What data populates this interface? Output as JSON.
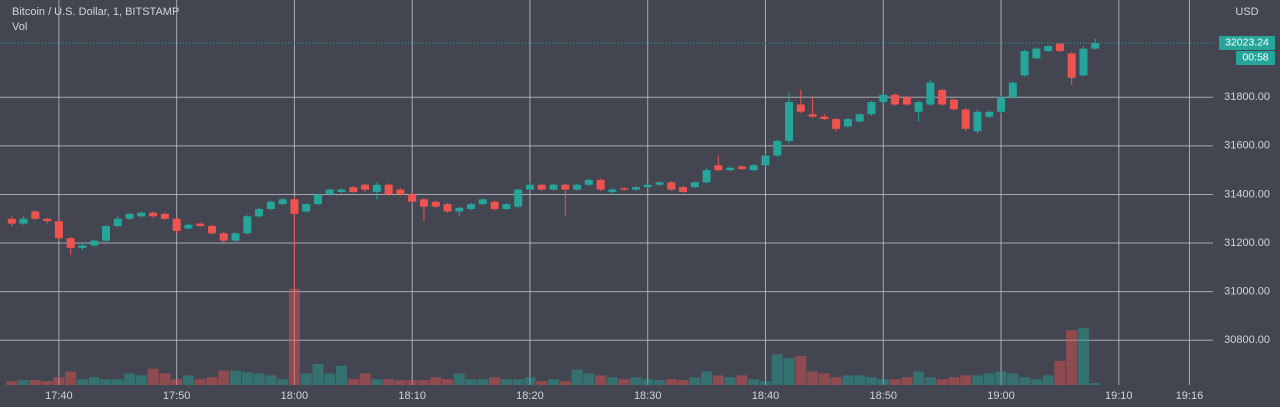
{
  "chart_data": {
    "type": "candlestick",
    "title": "Bitcoin / U.S. Dollar, 1, BITSTAMP",
    "currency": "USD",
    "countdown": "00:58",
    "up_color": "#26a69a",
    "down_color": "#ef5350",
    "x": [
      "17:36",
      "17:37",
      "17:38",
      "17:39",
      "17:40",
      "17:41",
      "17:42",
      "17:43",
      "17:44",
      "17:45",
      "17:46",
      "17:47",
      "17:48",
      "17:49",
      "17:50",
      "17:51",
      "17:52",
      "17:53",
      "17:54",
      "17:55",
      "17:56",
      "17:57",
      "17:58",
      "17:59",
      "18:00",
      "18:01",
      "18:02",
      "18:03",
      "18:04",
      "18:05",
      "18:06",
      "18:07",
      "18:08",
      "18:09",
      "18:10",
      "18:11",
      "18:12",
      "18:13",
      "18:14",
      "18:15",
      "18:16",
      "18:17",
      "18:18",
      "18:19",
      "18:20",
      "18:21",
      "18:22",
      "18:23",
      "18:24",
      "18:25",
      "18:26",
      "18:27",
      "18:28",
      "18:29",
      "18:30",
      "18:31",
      "18:32",
      "18:33",
      "18:34",
      "18:35",
      "18:36",
      "18:37",
      "18:38",
      "18:39",
      "18:40",
      "18:41",
      "18:42",
      "18:43",
      "18:44",
      "18:45",
      "18:46",
      "18:47",
      "18:48",
      "18:49",
      "18:50",
      "18:51",
      "18:52",
      "18:53",
      "18:54",
      "18:55",
      "18:56",
      "18:57",
      "18:58",
      "18:59",
      "19:00",
      "19:01",
      "19:02",
      "19:03",
      "19:04",
      "19:05",
      "19:06",
      "19:07",
      "19:08"
    ],
    "open": [
      31300,
      31280,
      31330,
      31300,
      31290,
      31220,
      31180,
      31190,
      31210,
      31270,
      31300,
      31310,
      31325,
      31320,
      31300,
      31260,
      31280,
      31270,
      31240,
      31210,
      31240,
      31310,
      31340,
      31360,
      31380,
      31330,
      31360,
      31400,
      31410,
      31430,
      31440,
      31410,
      31440,
      31420,
      31400,
      31380,
      31370,
      31360,
      31330,
      31340,
      31360,
      31370,
      31340,
      31350,
      31420,
      31440,
      31420,
      31440,
      31420,
      31440,
      31460,
      31410,
      31425,
      31420,
      31430,
      31440,
      31450,
      31430,
      31430,
      31450,
      31520,
      31500,
      31515,
      31500,
      31520,
      31560,
      31620,
      31770,
      31730,
      31720,
      31710,
      31680,
      31700,
      31730,
      31780,
      31810,
      31800,
      31740,
      31770,
      31830,
      31790,
      31750,
      31660,
      31720,
      31740,
      31800,
      31890,
      31960,
      31990,
      32020,
      31980,
      31890,
      32000
    ],
    "high": [
      31310,
      31310,
      31335,
      31305,
      31295,
      31225,
      31200,
      31215,
      31275,
      31310,
      31325,
      31330,
      31330,
      31325,
      31305,
      31280,
      31285,
      31275,
      31245,
      31245,
      31315,
      31345,
      31375,
      31385,
      31390,
      31365,
      31405,
      31425,
      31425,
      31435,
      31445,
      31450,
      31445,
      31425,
      31405,
      31385,
      31375,
      31365,
      31350,
      31365,
      31385,
      31375,
      31365,
      31425,
      31450,
      31445,
      31445,
      31445,
      31445,
      31465,
      31465,
      31425,
      31430,
      31435,
      31445,
      31455,
      31455,
      31435,
      31455,
      31510,
      31560,
      31515,
      31520,
      31525,
      31570,
      31625,
      31820,
      31830,
      31800,
      31730,
      31715,
      31715,
      31735,
      31785,
      31820,
      31815,
      31805,
      31785,
      31870,
      31835,
      31795,
      31755,
      31750,
      31745,
      31805,
      31865,
      31995,
      32005,
      32015,
      32025,
      31985,
      32010,
      32040
    ],
    "low": [
      31270,
      31275,
      31295,
      31280,
      31210,
      31150,
      31170,
      31185,
      31205,
      31265,
      31295,
      31305,
      31305,
      31295,
      31240,
      31255,
      31265,
      31235,
      31195,
      31205,
      31235,
      31305,
      31335,
      31355,
      31010,
      31325,
      31355,
      31395,
      31405,
      31405,
      31410,
      31380,
      31395,
      31395,
      31365,
      31290,
      31345,
      31325,
      31310,
      31335,
      31355,
      31335,
      31335,
      31345,
      31415,
      31415,
      31415,
      31310,
      31415,
      31435,
      31415,
      31400,
      31415,
      31415,
      31425,
      31435,
      31415,
      31405,
      31425,
      31445,
      31495,
      31495,
      31500,
      31495,
      31515,
      31555,
      31610,
      31735,
      31715,
      31705,
      31660,
      31675,
      31695,
      31725,
      31775,
      31765,
      31765,
      31700,
      31765,
      31765,
      31745,
      31660,
      31650,
      31715,
      31735,
      31795,
      31885,
      31955,
      31985,
      31985,
      31850,
      31885,
      31995
    ],
    "close": [
      31280,
      31300,
      31300,
      31290,
      31220,
      31180,
      31190,
      31210,
      31270,
      31300,
      31320,
      31325,
      31310,
      31300,
      31250,
      31275,
      31270,
      31240,
      31210,
      31240,
      31310,
      31340,
      31370,
      31380,
      31320,
      31360,
      31400,
      31420,
      31420,
      31410,
      31420,
      31440,
      31400,
      31400,
      31370,
      31350,
      31350,
      31330,
      31345,
      31360,
      31380,
      31340,
      31360,
      31420,
      31440,
      31420,
      31440,
      31420,
      31440,
      31460,
      31420,
      31420,
      31420,
      31430,
      31440,
      31450,
      31420,
      31410,
      31450,
      31500,
      31500,
      31510,
      31505,
      31520,
      31560,
      31620,
      31780,
      31740,
      31720,
      31710,
      31670,
      31710,
      31730,
      31780,
      31810,
      31770,
      31770,
      31780,
      31860,
      31770,
      31750,
      31670,
      31740,
      31740,
      31800,
      31860,
      31990,
      32000,
      32010,
      31990,
      31880,
      32000,
      32023.24
    ],
    "volume": {
      "name": "Vol",
      "axis": "y2",
      "values": [
        4,
        5,
        5,
        4,
        8,
        14,
        6,
        8,
        6,
        6,
        12,
        10,
        17,
        12,
        6,
        10,
        6,
        8,
        15,
        15,
        13,
        12,
        10,
        6,
        100,
        12,
        22,
        12,
        20,
        6,
        12,
        6,
        6,
        5,
        5,
        5,
        8,
        6,
        12,
        6,
        6,
        8,
        6,
        6,
        8,
        4,
        6,
        4,
        16,
        12,
        10,
        8,
        6,
        8,
        6,
        5,
        6,
        5,
        8,
        14,
        10,
        8,
        10,
        6,
        4,
        32,
        28,
        30,
        14,
        12,
        8,
        10,
        10,
        8,
        6,
        6,
        8,
        14,
        8,
        6,
        8,
        10,
        10,
        12,
        14,
        12,
        8,
        6,
        10,
        25,
        57,
        59,
        2
      ]
    },
    "xlim": [
      "17:35",
      "19:18"
    ],
    "xticks": [
      "17:40",
      "17:50",
      "18:00",
      "18:10",
      "18:20",
      "18:30",
      "18:40",
      "18:50",
      "19:00",
      "19:10",
      "19:16"
    ],
    "ylim": [
      30616,
      32200
    ],
    "yticks": [
      {
        "value": 30800,
        "label": "30800.00"
      },
      {
        "value": 31000,
        "label": "31000.00"
      },
      {
        "value": 31200,
        "label": "31200.00"
      },
      {
        "value": 31400,
        "label": "31400.00"
      },
      {
        "value": 31600,
        "label": "31600.00"
      },
      {
        "value": 31800,
        "label": "31800.00"
      }
    ],
    "y2lim": [
      0,
      400
    ],
    "grid": true
  }
}
